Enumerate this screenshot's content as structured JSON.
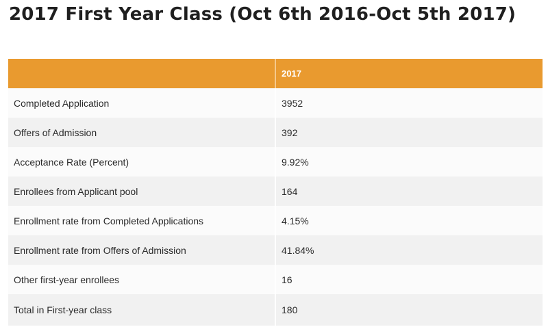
{
  "page": {
    "title": "2017 First Year Class (Oct 6th 2016-Oct 5th 2017)"
  },
  "table": {
    "columns": [
      "",
      "2017"
    ],
    "rows": [
      {
        "label": "Completed Application",
        "value": "3952"
      },
      {
        "label": "Offers of Admission",
        "value": "392"
      },
      {
        "label": "Acceptance Rate (Percent)",
        "value": "9.92%"
      },
      {
        "label": "Enrollees from Applicant pool",
        "value": "164"
      },
      {
        "label": "Enrollment rate from Completed Applications",
        "value": "4.15%"
      },
      {
        "label": "Enrollment rate from Offers of Admission",
        "value": "41.84%"
      },
      {
        "label": "Other first-year enrollees",
        "value": "16"
      },
      {
        "label": "Total in First-year class",
        "value": "180"
      }
    ]
  },
  "colors": {
    "header_background": "#e99a2f",
    "header_text": "#ffffff",
    "row_odd": "#fbfbfb",
    "row_even": "#f1f1f1"
  }
}
